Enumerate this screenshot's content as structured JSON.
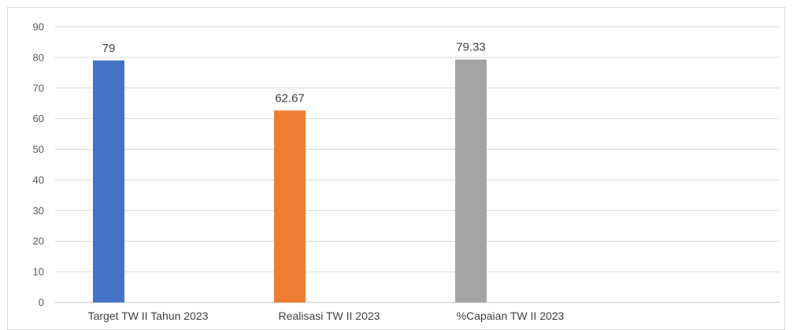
{
  "chart_data": {
    "type": "bar",
    "categories": [
      "Target TW II Tahun 2023",
      "Realisasi TW II 2023",
      "%Capaian TW II 2023"
    ],
    "values": [
      79,
      62.67,
      79.33
    ],
    "data_labels": [
      "79",
      "62.67",
      "79.33"
    ],
    "colors": [
      "#4472c4",
      "#ed7d31",
      "#a5a5a5"
    ],
    "ylim": [
      0,
      90
    ],
    "yticks": [
      0,
      10,
      20,
      30,
      40,
      50,
      60,
      70,
      80,
      90
    ],
    "title": "",
    "xlabel": "",
    "ylabel": "",
    "grid": true,
    "legend": "none"
  }
}
